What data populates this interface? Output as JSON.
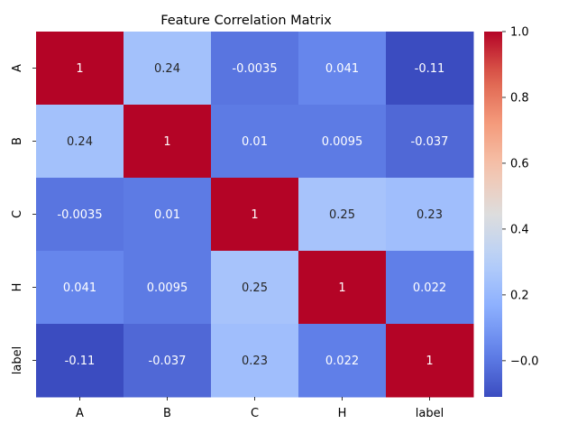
{
  "chart_data": {
    "type": "heatmap",
    "title": "Feature Correlation Matrix",
    "xlabel": "",
    "ylabel": "",
    "x_categories": [
      "A",
      "B",
      "C",
      "H",
      "label"
    ],
    "y_categories": [
      "A",
      "B",
      "C",
      "H",
      "label"
    ],
    "values": [
      [
        1,
        0.24,
        -0.0035,
        0.041,
        -0.11
      ],
      [
        0.24,
        1,
        0.01,
        0.0095,
        -0.037
      ],
      [
        -0.0035,
        0.01,
        1,
        0.25,
        0.23
      ],
      [
        0.041,
        0.0095,
        0.25,
        1,
        0.022
      ],
      [
        -0.11,
        -0.037,
        0.23,
        0.022,
        1
      ]
    ],
    "annotations": [
      [
        "1",
        "0.24",
        "-0.0035",
        "0.041",
        "-0.11"
      ],
      [
        "0.24",
        "1",
        "0.01",
        "0.0095",
        "-0.037"
      ],
      [
        "-0.0035",
        "0.01",
        "1",
        "0.25",
        "0.23"
      ],
      [
        "0.041",
        "0.0095",
        "0.25",
        "1",
        "0.022"
      ],
      [
        "-0.11",
        "-0.037",
        "0.23",
        "0.022",
        "1"
      ]
    ],
    "colormap": "coolwarm",
    "vmin": -0.11,
    "vmax": 1.0,
    "colorbar": {
      "ticks": [
        -0.0,
        0.2,
        0.4,
        0.6,
        0.8,
        1.0
      ],
      "tick_labels": [
        "−0.0",
        "0.2",
        "0.4",
        "0.6",
        "0.8",
        "1.0"
      ]
    },
    "grid": false
  }
}
